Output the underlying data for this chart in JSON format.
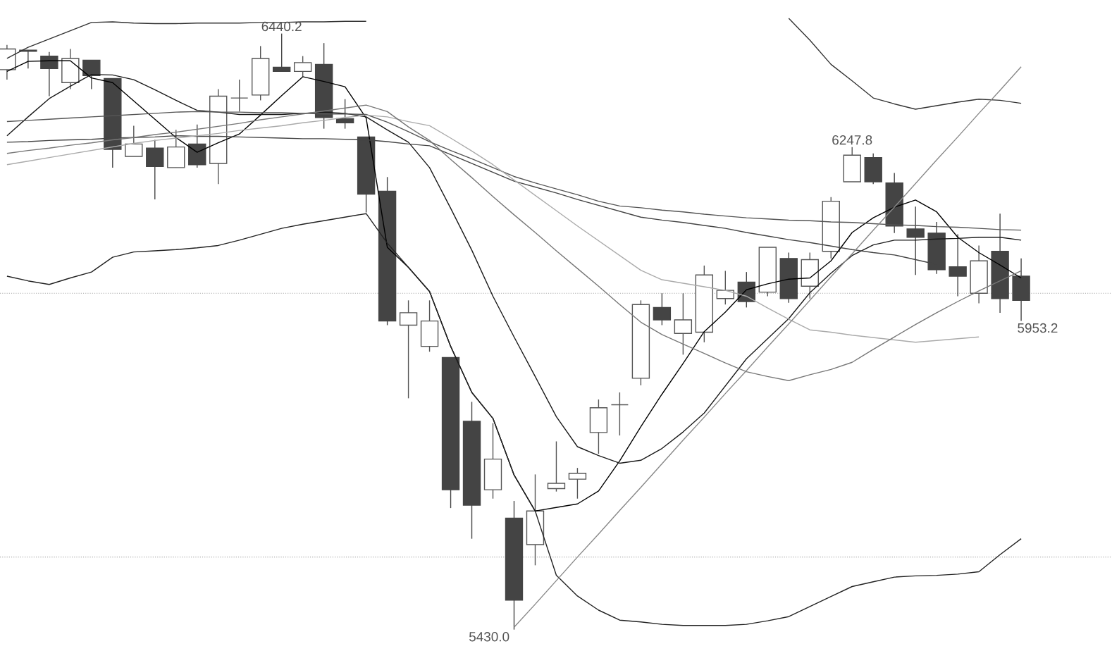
{
  "chart_data": {
    "type": "candlestick",
    "categories": [
      null,
      null,
      null,
      null,
      null,
      null,
      null,
      null,
      null,
      null,
      null,
      null,
      null,
      null,
      null,
      null,
      null,
      null,
      null,
      null,
      null,
      null,
      null,
      null,
      null,
      null,
      null,
      null,
      null,
      null,
      null,
      null,
      null,
      null,
      null,
      null,
      null,
      null,
      null,
      null,
      null,
      null,
      null,
      null,
      null,
      null,
      null,
      null,
      null
    ],
    "ohlc": [
      [
        6379,
        6421,
        6362,
        6414
      ],
      [
        6412,
        6412,
        6381,
        6410
      ],
      [
        6402,
        6409,
        6334,
        6381
      ],
      [
        6357,
        6414,
        6346,
        6398
      ],
      [
        6395,
        6395,
        6346,
        6369
      ],
      [
        6364,
        6364,
        6213,
        6244
      ],
      [
        6232,
        6284,
        6232,
        6253
      ],
      [
        6246,
        6260,
        6159,
        6215
      ],
      [
        6213,
        6277,
        6213,
        6248
      ],
      [
        6253,
        6286,
        6213,
        6218
      ],
      [
        6220,
        6346,
        6185,
        6334
      ],
      [
        6331,
        6362,
        6308,
        6331
      ],
      [
        6336,
        6419,
        6327,
        6398
      ],
      [
        6383,
        6440.2,
        6376,
        6376
      ],
      [
        6376,
        6402,
        6367,
        6391
      ],
      [
        6388,
        6424,
        6279,
        6298
      ],
      [
        6296,
        6329,
        6279,
        6289
      ],
      [
        6265,
        6265,
        6137,
        6168
      ],
      [
        6173,
        6197,
        5946,
        5953
      ],
      [
        5946,
        5988,
        5822,
        5967
      ],
      [
        5910,
        5988,
        5901,
        5953
      ],
      [
        5891,
        5891,
        5636,
        5667
      ],
      [
        5783,
        5816,
        5584,
        5641
      ],
      [
        5667,
        5780,
        5652,
        5719
      ],
      [
        5619,
        5648,
        5430.0,
        5480
      ],
      [
        5574,
        5693,
        5539,
        5631
      ],
      [
        5669,
        5749,
        5664,
        5678
      ],
      [
        5685,
        5704,
        5652,
        5695
      ],
      [
        5764,
        5820,
        5728,
        5806
      ],
      [
        5811,
        5832,
        5759,
        5811
      ],
      [
        5856,
        5988,
        5844,
        5981
      ],
      [
        5976,
        6000,
        5946,
        5955
      ],
      [
        5932,
        6000,
        5896,
        5955
      ],
      [
        5934,
        6047,
        5917,
        6031
      ],
      [
        5991,
        6038,
        5981,
        6005
      ],
      [
        6019,
        6036,
        5976,
        5986
      ],
      [
        6002,
        6078,
        5995,
        6078
      ],
      [
        6059,
        6069,
        5984,
        5991
      ],
      [
        6012,
        6069,
        5991,
        6057
      ],
      [
        6071,
        6163,
        6059,
        6156
      ],
      [
        6189,
        6247.8,
        6189,
        6234
      ],
      [
        6230,
        6237,
        6185,
        6189
      ],
      [
        6187,
        6204,
        6102,
        6114
      ],
      [
        6109,
        6147,
        6031,
        6095
      ],
      [
        6102,
        6121,
        6033,
        6040
      ],
      [
        6045,
        6100,
        5995,
        6029
      ],
      [
        6000,
        6081,
        5983,
        6055
      ],
      [
        6071,
        6135,
        5967,
        5991
      ],
      [
        6029,
        6059,
        5953.2,
        5988
      ]
    ],
    "series": [
      {
        "type": "line",
        "color": "#000000",
        "values": [
          6376,
          6393,
          6394,
          6394,
          6365,
          6357,
          6326,
          6295,
          6264,
          6239,
          6255,
          6270,
          6302,
          6335,
          6367,
          6359,
          6350,
          6297,
          6078,
          6044,
          6003,
          5910,
          5832,
          5788,
          5692,
          5631,
          5637,
          5643,
          5665,
          5716,
          5774,
          5829,
          5881,
          5935,
          5968,
          6006,
          6016,
          6024,
          6026,
          6055,
          6103,
          6128,
          6146,
          6158,
          6138,
          6095,
          6069,
          6048,
          6026
        ]
      },
      {
        "type": "line",
        "color": "#1a1a1a",
        "values": [
          6267,
          6299,
          6330,
          6351,
          6371,
          6370,
          6362,
          6345,
          6327,
          6310,
          6307,
          6303,
          6303,
          6303,
          6305,
          6307,
          6305,
          6299,
          6277,
          6256,
          6213,
          6144,
          6073,
          5995,
          5926,
          5859,
          5791,
          5740,
          5725,
          5712,
          5717,
          5737,
          5765,
          5797,
          5843,
          5889,
          5923,
          5957,
          6001,
          6034,
          6064,
          6082,
          6090,
          6090,
          6092,
          6093,
          6095,
          6095,
          6090
        ]
      },
      {
        "type": "line",
        "color": "#555555",
        "values": [
          6291,
          6293,
          6295,
          6297,
          6299,
          6301,
          6303,
          6305,
          6307,
          6308,
          6307,
          6307,
          6306,
          6306,
          6305,
          6304,
          6304,
          6303,
          6290,
          6274,
          6257,
          6242,
          6228,
          6213,
          6198,
          6187,
          6177,
          6167,
          6156,
          6148,
          6145,
          6141,
          6138,
          6134,
          6131,
          6128,
          6126,
          6124,
          6123,
          6121,
          6120,
          6118,
          6116,
          6115,
          6113,
          6112,
          6110,
          6108,
          6107
        ]
      },
      {
        "type": "line",
        "color": "#444444",
        "values": [
          6256,
          6257,
          6259,
          6260,
          6261,
          6263,
          6264,
          6265,
          6267,
          6266,
          6266,
          6265,
          6264,
          6263,
          6262,
          6262,
          6261,
          6260,
          6257,
          6253,
          6250,
          6235,
          6220,
          6205,
          6190,
          6180,
          6170,
          6159,
          6149,
          6139,
          6129,
          6124,
          6120,
          6115,
          6110,
          6103,
          6097,
          6091,
          6086,
          6080,
          6074,
          6069,
          6065,
          6057,
          6049,
          null,
          null,
          null,
          null
        ]
      },
      {
        "type": "line",
        "color": "#aaaaaa",
        "values": [
          6218,
          6224,
          6230,
          6236,
          6242,
          6248,
          6254,
          6259,
          6263,
          6267,
          6271,
          6276,
          6280,
          6284,
          6289,
          6293,
          6298,
          6302,
          6299,
          6291,
          6284,
          6263,
          6241,
          6218,
          6192,
          6166,
          6140,
          6114,
          6089,
          6064,
          6039,
          6023,
          6017,
          6011,
          6005,
          5995,
          5975,
          5956,
          5938,
          5934,
          5929,
          5925,
          5921,
          5917,
          5920,
          5923,
          5926,
          null,
          null
        ]
      },
      {
        "type": "line",
        "color": "#777777",
        "values": [
          6237,
          6242,
          6246,
          6251,
          6255,
          6260,
          6264,
          6269,
          6273,
          6278,
          6283,
          6288,
          6294,
          6299,
          6304,
          6309,
          6314,
          6319,
          6308,
          6282,
          6259,
          6227,
          6196,
          6164,
          6133,
          6103,
          6072,
          6042,
          6012,
          5981,
          5951,
          5930,
          5914,
          5898,
          5882,
          5867,
          5859,
          5852,
          5862,
          5871,
          5883,
          5905,
          5926,
          5947,
          5967,
          5986,
          6004,
          6021,
          6038
        ]
      },
      {
        "type": "line",
        "color": "#333333",
        "values": [
          6398,
          6417,
          6431,
          6445,
          6459,
          6460,
          6458,
          6457,
          6457,
          6458,
          6458,
          6458,
          6459,
          6459,
          6460,
          6460,
          6461,
          6461,
          null,
          null,
          null,
          null,
          null,
          null,
          null,
          null,
          null,
          null,
          null,
          null,
          null,
          null,
          null,
          null,
          null,
          null,
          null,
          6466,
          6429,
          6388,
          6360,
          6331,
          6321,
          6312,
          6318,
          6324,
          6329,
          6327,
          6322
        ]
      },
      {
        "type": "line",
        "color": "#222222",
        "values": [
          6029,
          6021,
          6015,
          6026,
          6036,
          6061,
          6070,
          6072,
          6074,
          6077,
          6081,
          6090,
          6100,
          6110,
          6117,
          6123,
          6129,
          6135,
          6085,
          6044,
          6003,
          5910,
          5832,
          5788,
          5692,
          5631,
          5522,
          5487,
          5463,
          5446,
          5443,
          5439,
          5437,
          5437,
          5437,
          5439,
          5445,
          5452,
          5469,
          5486,
          5503,
          5511,
          5519,
          5521,
          5522,
          5524,
          5528,
          5557,
          5584
        ]
      },
      {
        "type": "line",
        "color": "#888888",
        "values": [
          null,
          null,
          null,
          null,
          null,
          null,
          null,
          null,
          null,
          null,
          null,
          null,
          null,
          null,
          null,
          null,
          null,
          null,
          null,
          null,
          null,
          null,
          null,
          null,
          5434,
          5473,
          5513,
          5553,
          5592,
          5632,
          5671,
          5711,
          5751,
          5790,
          5830,
          5869,
          5909,
          5948,
          5988,
          6028,
          6067,
          6107,
          6146,
          6186,
          6226,
          6265,
          6305,
          6344,
          6384
        ]
      }
    ],
    "ref_lines": [
      {
        "axis": "y",
        "value": 6000,
        "color": "#aaaaaa",
        "line_style": "dotted"
      },
      {
        "axis": "y",
        "value": 5553,
        "color": "#aaaaaa",
        "line_style": "dotted"
      }
    ],
    "annotations": [
      {
        "text": "6440.2",
        "y": 6440.2
      },
      {
        "text": "6247.8",
        "y": 6247.8
      },
      "5430.0",
      "5953.2"
    ]
  }
}
